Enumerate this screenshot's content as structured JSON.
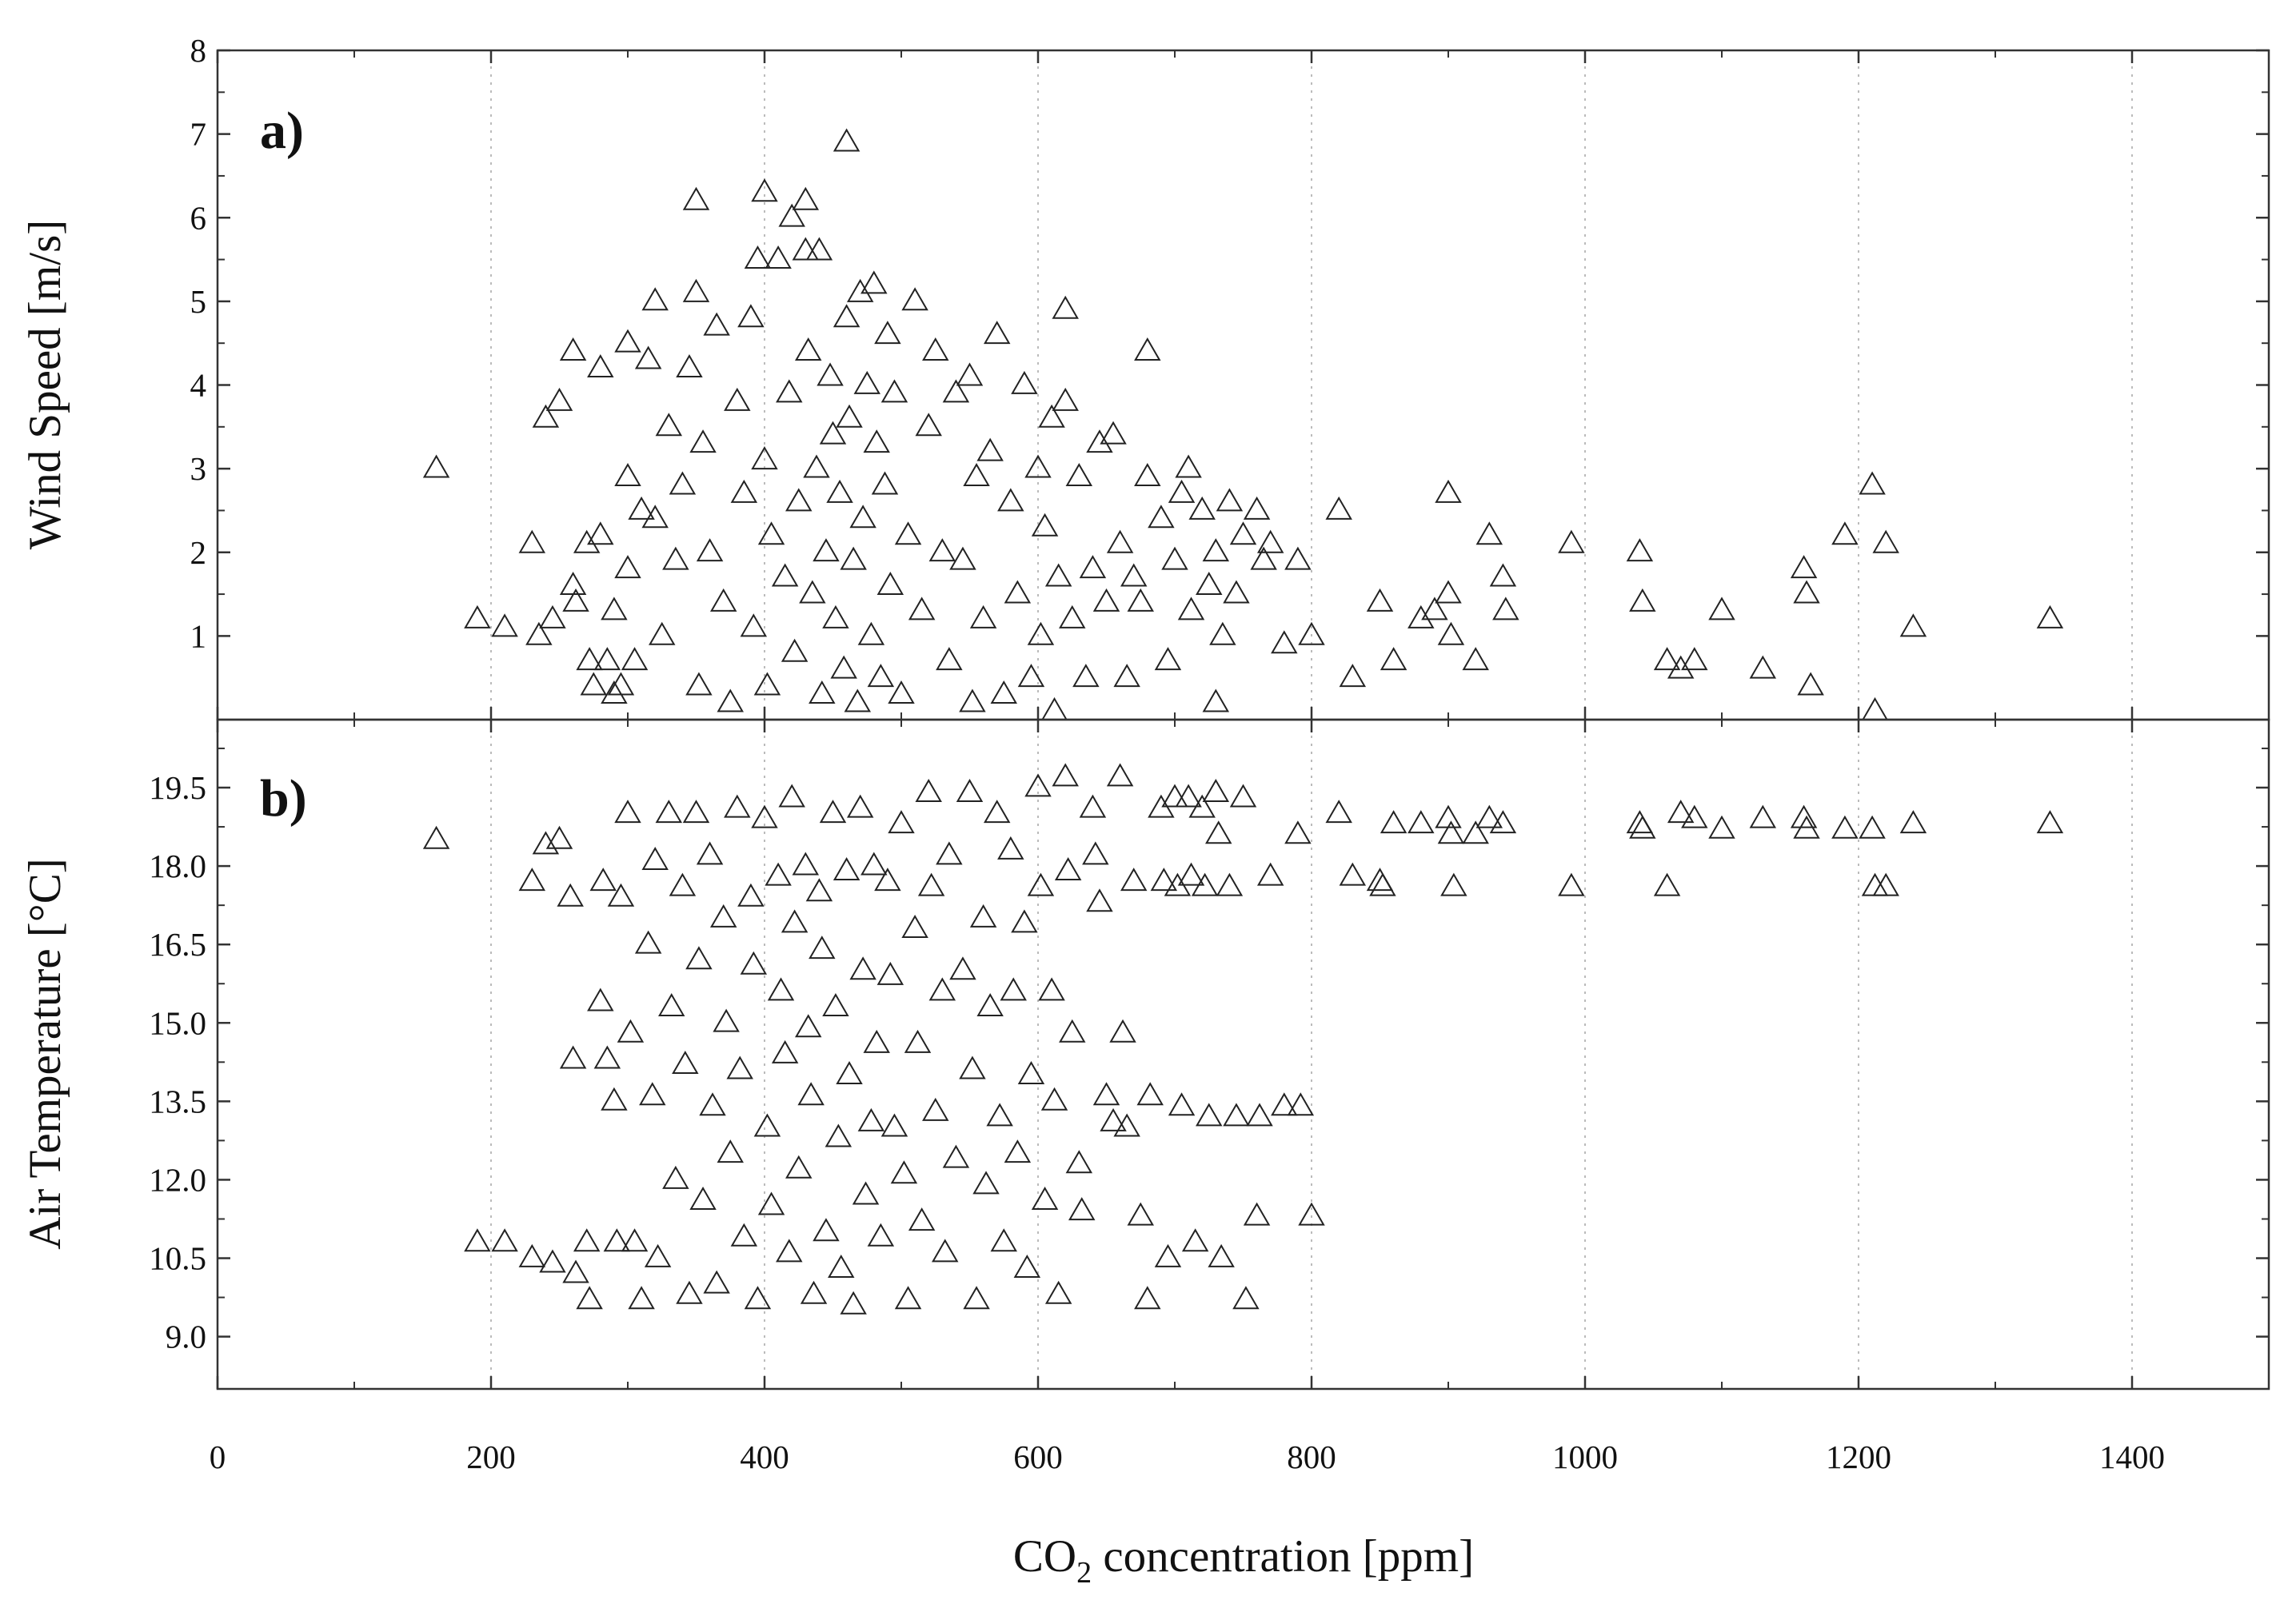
{
  "chart_data": [
    {
      "type": "scatter",
      "panel_label": "a)",
      "xlabel": "CO2 concentration [ppm]",
      "ylabel": "Wind Speed [m/s]",
      "xlim": [
        0,
        1500
      ],
      "ylim": [
        0,
        8
      ],
      "xticks": [
        "0",
        "200",
        "400",
        "600",
        "800",
        "1000",
        "1200",
        "1400"
      ],
      "yticks": [
        "1",
        "2",
        "3",
        "4",
        "5",
        "6",
        "7",
        "8"
      ],
      "grid": "vertical dotted",
      "marker": "open-triangle",
      "points": [
        [
          160,
          3.0
        ],
        [
          190,
          1.2
        ],
        [
          210,
          1.1
        ],
        [
          230,
          2.1
        ],
        [
          235,
          1.0
        ],
        [
          240,
          3.6
        ],
        [
          245,
          1.2
        ],
        [
          250,
          3.8
        ],
        [
          260,
          4.4
        ],
        [
          260,
          1.6
        ],
        [
          262,
          1.4
        ],
        [
          270,
          2.1
        ],
        [
          272,
          0.7
        ],
        [
          275,
          0.4
        ],
        [
          280,
          4.2
        ],
        [
          280,
          2.2
        ],
        [
          285,
          0.7
        ],
        [
          290,
          1.3
        ],
        [
          290,
          0.3
        ],
        [
          295,
          0.4
        ],
        [
          300,
          4.5
        ],
        [
          300,
          2.9
        ],
        [
          300,
          1.8
        ],
        [
          305,
          0.7
        ],
        [
          310,
          2.5
        ],
        [
          315,
          4.3
        ],
        [
          320,
          5.0
        ],
        [
          320,
          2.4
        ],
        [
          325,
          1.0
        ],
        [
          330,
          3.5
        ],
        [
          335,
          1.9
        ],
        [
          340,
          2.8
        ],
        [
          345,
          4.2
        ],
        [
          350,
          6.2
        ],
        [
          350,
          5.1
        ],
        [
          352,
          0.4
        ],
        [
          355,
          3.3
        ],
        [
          360,
          2.0
        ],
        [
          365,
          4.7
        ],
        [
          370,
          1.4
        ],
        [
          375,
          0.2
        ],
        [
          380,
          3.8
        ],
        [
          385,
          2.7
        ],
        [
          390,
          4.8
        ],
        [
          392,
          1.1
        ],
        [
          395,
          5.5
        ],
        [
          400,
          6.3
        ],
        [
          400,
          3.1
        ],
        [
          402,
          0.4
        ],
        [
          405,
          2.2
        ],
        [
          410,
          5.5
        ],
        [
          415,
          1.7
        ],
        [
          418,
          3.9
        ],
        [
          420,
          6.0
        ],
        [
          422,
          0.8
        ],
        [
          425,
          2.6
        ],
        [
          430,
          6.2
        ],
        [
          430,
          5.6
        ],
        [
          432,
          4.4
        ],
        [
          435,
          1.5
        ],
        [
          438,
          3.0
        ],
        [
          440,
          5.6
        ],
        [
          442,
          0.3
        ],
        [
          445,
          2.0
        ],
        [
          448,
          4.1
        ],
        [
          450,
          3.4
        ],
        [
          452,
          1.2
        ],
        [
          455,
          2.7
        ],
        [
          458,
          0.6
        ],
        [
          460,
          6.9
        ],
        [
          460,
          4.8
        ],
        [
          462,
          3.6
        ],
        [
          465,
          1.9
        ],
        [
          468,
          0.2
        ],
        [
          470,
          5.1
        ],
        [
          472,
          2.4
        ],
        [
          475,
          4.0
        ],
        [
          478,
          1.0
        ],
        [
          480,
          5.2
        ],
        [
          482,
          3.3
        ],
        [
          485,
          0.5
        ],
        [
          488,
          2.8
        ],
        [
          490,
          4.6
        ],
        [
          492,
          1.6
        ],
        [
          495,
          3.9
        ],
        [
          500,
          0.3
        ],
        [
          505,
          2.2
        ],
        [
          510,
          5.0
        ],
        [
          515,
          1.3
        ],
        [
          520,
          3.5
        ],
        [
          525,
          4.4
        ],
        [
          530,
          2.0
        ],
        [
          535,
          0.7
        ],
        [
          540,
          3.9
        ],
        [
          545,
          1.9
        ],
        [
          550,
          4.1
        ],
        [
          552,
          0.2
        ],
        [
          555,
          2.9
        ],
        [
          560,
          1.2
        ],
        [
          565,
          3.2
        ],
        [
          570,
          4.6
        ],
        [
          575,
          0.3
        ],
        [
          580,
          2.6
        ],
        [
          585,
          1.5
        ],
        [
          590,
          4.0
        ],
        [
          595,
          0.5
        ],
        [
          600,
          3.0
        ],
        [
          602,
          1.0
        ],
        [
          605,
          2.3
        ],
        [
          610,
          3.6
        ],
        [
          612,
          0.1
        ],
        [
          615,
          1.7
        ],
        [
          620,
          4.9
        ],
        [
          620,
          3.8
        ],
        [
          625,
          1.2
        ],
        [
          630,
          2.9
        ],
        [
          635,
          0.5
        ],
        [
          640,
          1.8
        ],
        [
          645,
          3.3
        ],
        [
          650,
          1.4
        ],
        [
          655,
          3.4
        ],
        [
          660,
          2.1
        ],
        [
          665,
          0.5
        ],
        [
          670,
          1.7
        ],
        [
          675,
          1.4
        ],
        [
          680,
          4.4
        ],
        [
          680,
          2.9
        ],
        [
          690,
          2.4
        ],
        [
          695,
          0.7
        ],
        [
          700,
          1.9
        ],
        [
          705,
          2.7
        ],
        [
          710,
          3.0
        ],
        [
          712,
          1.3
        ],
        [
          720,
          2.5
        ],
        [
          725,
          1.6
        ],
        [
          730,
          0.2
        ],
        [
          730,
          2.0
        ],
        [
          735,
          1.0
        ],
        [
          740,
          2.6
        ],
        [
          745,
          1.5
        ],
        [
          750,
          2.2
        ],
        [
          760,
          2.5
        ],
        [
          765,
          1.9
        ],
        [
          770,
          2.1
        ],
        [
          780,
          0.9
        ],
        [
          790,
          1.9
        ],
        [
          800,
          1.0
        ],
        [
          820,
          2.5
        ],
        [
          830,
          0.5
        ],
        [
          850,
          1.4
        ],
        [
          860,
          0.7
        ],
        [
          880,
          1.2
        ],
        [
          890,
          1.3
        ],
        [
          900,
          2.7
        ],
        [
          900,
          1.5
        ],
        [
          902,
          1.0
        ],
        [
          920,
          0.7
        ],
        [
          930,
          2.2
        ],
        [
          940,
          1.7
        ],
        [
          942,
          1.3
        ],
        [
          990,
          2.1
        ],
        [
          1040,
          2.0
        ],
        [
          1042,
          1.4
        ],
        [
          1060,
          0.7
        ],
        [
          1070,
          0.6
        ],
        [
          1080,
          0.7
        ],
        [
          1100,
          1.3
        ],
        [
          1130,
          0.6
        ],
        [
          1160,
          1.8
        ],
        [
          1162,
          1.5
        ],
        [
          1165,
          0.4
        ],
        [
          1190,
          2.2
        ],
        [
          1210,
          2.8
        ],
        [
          1212,
          0.1
        ],
        [
          1220,
          2.1
        ],
        [
          1240,
          1.1
        ],
        [
          1340,
          1.2
        ]
      ]
    },
    {
      "type": "scatter",
      "panel_label": "b)",
      "xlabel": "CO2 concentration [ppm]",
      "ylabel": "Air Temperature [°C]",
      "xlim": [
        0,
        1500
      ],
      "ylim": [
        8,
        20.8
      ],
      "xticks": [
        "0",
        "200",
        "400",
        "600",
        "800",
        "1000",
        "1200",
        "1400"
      ],
      "yticks": [
        "9.0",
        "10.5",
        "12.0",
        "13.5",
        "15.0",
        "16.5",
        "18.0",
        "19.5"
      ],
      "grid": "vertical dotted",
      "marker": "open-triangle",
      "points": [
        [
          160,
          18.5
        ],
        [
          190,
          10.8
        ],
        [
          210,
          10.8
        ],
        [
          230,
          17.7
        ],
        [
          230,
          10.5
        ],
        [
          240,
          18.4
        ],
        [
          245,
          10.4
        ],
        [
          250,
          18.5
        ],
        [
          258,
          17.4
        ],
        [
          260,
          14.3
        ],
        [
          262,
          10.2
        ],
        [
          270,
          10.8
        ],
        [
          272,
          9.7
        ],
        [
          280,
          15.4
        ],
        [
          282,
          17.7
        ],
        [
          285,
          14.3
        ],
        [
          290,
          13.5
        ],
        [
          292,
          10.8
        ],
        [
          295,
          17.4
        ],
        [
          300,
          19.0
        ],
        [
          302,
          14.8
        ],
        [
          305,
          10.8
        ],
        [
          310,
          9.7
        ],
        [
          315,
          16.5
        ],
        [
          318,
          13.6
        ],
        [
          320,
          18.1
        ],
        [
          322,
          10.5
        ],
        [
          330,
          19.0
        ],
        [
          332,
          15.3
        ],
        [
          335,
          12.0
        ],
        [
          340,
          17.6
        ],
        [
          342,
          14.2
        ],
        [
          345,
          9.8
        ],
        [
          350,
          19.0
        ],
        [
          352,
          16.2
        ],
        [
          355,
          11.6
        ],
        [
          360,
          18.2
        ],
        [
          362,
          13.4
        ],
        [
          365,
          10.0
        ],
        [
          370,
          17.0
        ],
        [
          372,
          15.0
        ],
        [
          375,
          12.5
        ],
        [
          380,
          19.1
        ],
        [
          382,
          14.1
        ],
        [
          385,
          10.9
        ],
        [
          390,
          17.4
        ],
        [
          392,
          16.1
        ],
        [
          395,
          9.7
        ],
        [
          400,
          18.9
        ],
        [
          402,
          13.0
        ],
        [
          405,
          11.5
        ],
        [
          410,
          17.8
        ],
        [
          412,
          15.6
        ],
        [
          415,
          14.4
        ],
        [
          418,
          10.6
        ],
        [
          420,
          19.3
        ],
        [
          422,
          16.9
        ],
        [
          425,
          12.2
        ],
        [
          430,
          18.0
        ],
        [
          432,
          14.9
        ],
        [
          434,
          13.6
        ],
        [
          436,
          9.8
        ],
        [
          440,
          17.5
        ],
        [
          442,
          16.4
        ],
        [
          445,
          11.0
        ],
        [
          450,
          19.0
        ],
        [
          452,
          15.3
        ],
        [
          454,
          12.8
        ],
        [
          456,
          10.3
        ],
        [
          460,
          17.9
        ],
        [
          462,
          14.0
        ],
        [
          465,
          9.6
        ],
        [
          470,
          19.1
        ],
        [
          472,
          16.0
        ],
        [
          474,
          11.7
        ],
        [
          478,
          13.1
        ],
        [
          480,
          18.0
        ],
        [
          482,
          14.6
        ],
        [
          485,
          10.9
        ],
        [
          490,
          17.7
        ],
        [
          492,
          15.9
        ],
        [
          495,
          13.0
        ],
        [
          500,
          18.8
        ],
        [
          502,
          12.1
        ],
        [
          505,
          9.7
        ],
        [
          510,
          16.8
        ],
        [
          512,
          14.6
        ],
        [
          515,
          11.2
        ],
        [
          520,
          19.4
        ],
        [
          522,
          17.6
        ],
        [
          525,
          13.3
        ],
        [
          530,
          15.6
        ],
        [
          532,
          10.6
        ],
        [
          535,
          18.2
        ],
        [
          540,
          12.4
        ],
        [
          545,
          16.0
        ],
        [
          550,
          19.4
        ],
        [
          552,
          14.1
        ],
        [
          555,
          9.7
        ],
        [
          560,
          17.0
        ],
        [
          562,
          11.9
        ],
        [
          565,
          15.3
        ],
        [
          570,
          19.0
        ],
        [
          572,
          13.2
        ],
        [
          575,
          10.8
        ],
        [
          580,
          18.3
        ],
        [
          582,
          15.6
        ],
        [
          585,
          12.5
        ],
        [
          590,
          16.9
        ],
        [
          592,
          10.3
        ],
        [
          595,
          14.0
        ],
        [
          600,
          19.5
        ],
        [
          602,
          17.6
        ],
        [
          605,
          11.6
        ],
        [
          610,
          15.6
        ],
        [
          612,
          13.5
        ],
        [
          615,
          9.8
        ],
        [
          620,
          19.7
        ],
        [
          622,
          17.9
        ],
        [
          625,
          14.8
        ],
        [
          630,
          12.3
        ],
        [
          632,
          11.4
        ],
        [
          640,
          19.1
        ],
        [
          642,
          18.2
        ],
        [
          645,
          17.3
        ],
        [
          650,
          13.6
        ],
        [
          655,
          13.1
        ],
        [
          660,
          19.7
        ],
        [
          662,
          14.8
        ],
        [
          665,
          13.0
        ],
        [
          670,
          17.7
        ],
        [
          675,
          11.3
        ],
        [
          680,
          9.7
        ],
        [
          682,
          13.6
        ],
        [
          690,
          19.1
        ],
        [
          692,
          17.7
        ],
        [
          695,
          10.5
        ],
        [
          700,
          19.3
        ],
        [
          702,
          17.6
        ],
        [
          705,
          13.4
        ],
        [
          710,
          19.3
        ],
        [
          712,
          17.8
        ],
        [
          715,
          10.8
        ],
        [
          720,
          19.1
        ],
        [
          722,
          17.6
        ],
        [
          725,
          13.2
        ],
        [
          730,
          19.4
        ],
        [
          732,
          18.6
        ],
        [
          734,
          10.5
        ],
        [
          740,
          17.6
        ],
        [
          745,
          13.2
        ],
        [
          750,
          19.3
        ],
        [
          752,
          9.7
        ],
        [
          760,
          11.3
        ],
        [
          762,
          13.2
        ],
        [
          770,
          17.8
        ],
        [
          780,
          13.4
        ],
        [
          790,
          18.6
        ],
        [
          792,
          13.4
        ],
        [
          800,
          11.3
        ],
        [
          820,
          19.0
        ],
        [
          830,
          17.8
        ],
        [
          850,
          17.7
        ],
        [
          852,
          17.6
        ],
        [
          860,
          18.8
        ],
        [
          880,
          18.8
        ],
        [
          900,
          18.9
        ],
        [
          902,
          18.6
        ],
        [
          904,
          17.6
        ],
        [
          920,
          18.6
        ],
        [
          930,
          18.9
        ],
        [
          940,
          18.8
        ],
        [
          990,
          17.6
        ],
        [
          1040,
          18.8
        ],
        [
          1042,
          18.7
        ],
        [
          1060,
          17.6
        ],
        [
          1070,
          19.0
        ],
        [
          1080,
          18.9
        ],
        [
          1100,
          18.7
        ],
        [
          1130,
          18.9
        ],
        [
          1160,
          18.9
        ],
        [
          1162,
          18.7
        ],
        [
          1190,
          18.7
        ],
        [
          1210,
          18.7
        ],
        [
          1212,
          17.6
        ],
        [
          1220,
          17.6
        ],
        [
          1240,
          18.8
        ],
        [
          1340,
          18.8
        ]
      ]
    }
  ]
}
